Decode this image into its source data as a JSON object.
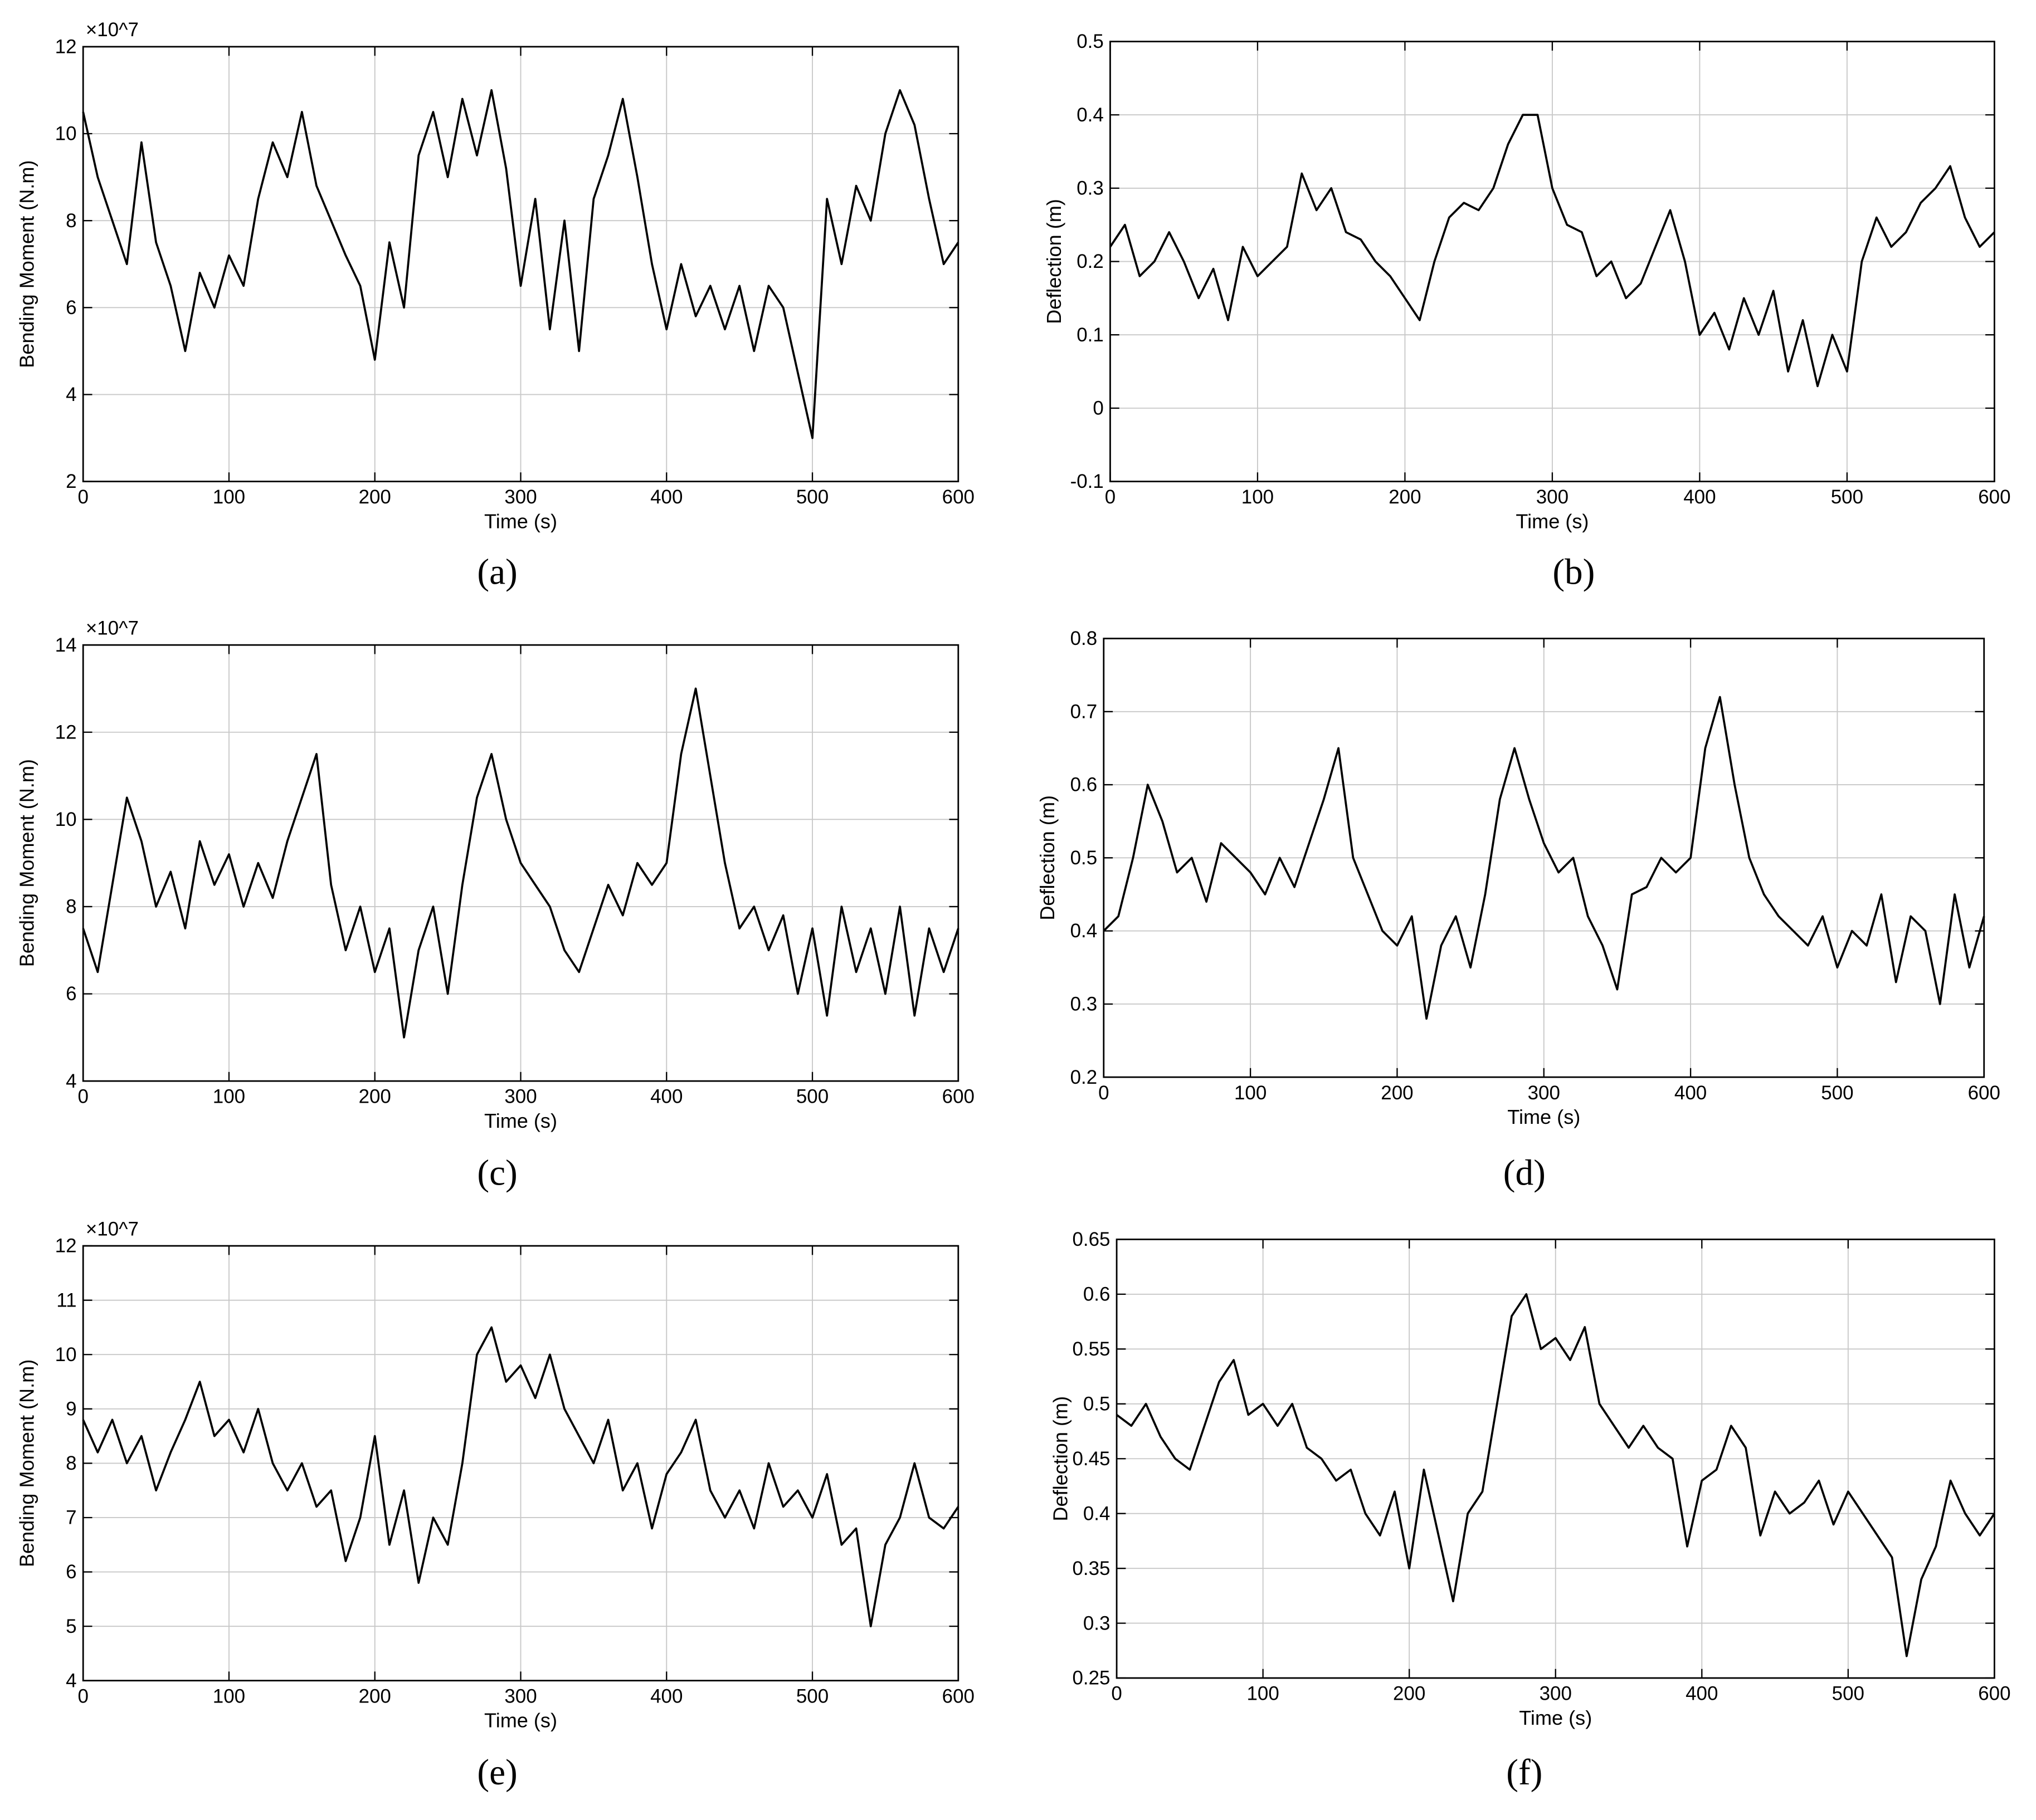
{
  "chart_data": [
    {
      "type": "line",
      "label": "(a)",
      "x_label": "Time (s)",
      "y_label": "Bending Moment (N.m)",
      "y_multiplier": "×10^7",
      "color": "#000000",
      "grid": true,
      "xlim": [
        0,
        600
      ],
      "xticks": [
        0,
        100,
        200,
        300,
        400,
        500,
        600
      ],
      "ylim": [
        2,
        12
      ],
      "yticks": [
        2,
        4,
        6,
        8,
        10,
        12
      ],
      "x": [
        0,
        10,
        20,
        30,
        40,
        50,
        60,
        70,
        80,
        90,
        100,
        110,
        120,
        130,
        140,
        150,
        160,
        170,
        180,
        190,
        200,
        210,
        220,
        230,
        240,
        250,
        260,
        270,
        280,
        290,
        300,
        310,
        320,
        330,
        340,
        350,
        360,
        370,
        380,
        390,
        400,
        410,
        420,
        430,
        440,
        450,
        460,
        470,
        480,
        490,
        500,
        510,
        520,
        530,
        540,
        550,
        560,
        570,
        580,
        590,
        600
      ],
      "values": [
        10.5,
        9.0,
        8.0,
        7.0,
        9.8,
        7.5,
        6.5,
        5.0,
        6.8,
        6.0,
        7.2,
        6.5,
        8.5,
        9.8,
        9.0,
        10.5,
        8.8,
        8.0,
        7.2,
        6.5,
        4.8,
        7.5,
        6.0,
        9.5,
        10.5,
        9.0,
        10.8,
        9.5,
        11.0,
        9.2,
        6.5,
        8.5,
        5.5,
        8.0,
        5.0,
        8.5,
        9.5,
        10.8,
        9.0,
        7.0,
        5.5,
        7.0,
        5.8,
        6.5,
        5.5,
        6.5,
        5.0,
        6.5,
        6.0,
        4.5,
        3.0,
        8.5,
        7.0,
        8.8,
        8.0,
        10.0,
        11.0,
        10.2,
        8.5,
        7.0,
        7.5
      ]
    },
    {
      "type": "line",
      "label": "(b)",
      "x_label": "Time (s)",
      "y_label": "Deflection (m)",
      "color": "#000000",
      "grid": true,
      "xlim": [
        0,
        600
      ],
      "xticks": [
        0,
        100,
        200,
        300,
        400,
        500,
        600
      ],
      "ylim": [
        -0.1,
        0.5
      ],
      "yticks": [
        -0.1,
        0,
        0.1,
        0.2,
        0.3,
        0.4,
        0.5
      ],
      "x": [
        0,
        10,
        20,
        30,
        40,
        50,
        60,
        70,
        80,
        90,
        100,
        110,
        120,
        130,
        140,
        150,
        160,
        170,
        180,
        190,
        200,
        210,
        220,
        230,
        240,
        250,
        260,
        270,
        280,
        290,
        300,
        310,
        320,
        330,
        340,
        350,
        360,
        370,
        380,
        390,
        400,
        410,
        420,
        430,
        440,
        450,
        460,
        470,
        480,
        490,
        500,
        510,
        520,
        530,
        540,
        550,
        560,
        570,
        580,
        590,
        600
      ],
      "values": [
        0.22,
        0.25,
        0.18,
        0.2,
        0.24,
        0.2,
        0.15,
        0.19,
        0.12,
        0.22,
        0.18,
        0.2,
        0.22,
        0.32,
        0.27,
        0.3,
        0.24,
        0.23,
        0.2,
        0.18,
        0.15,
        0.12,
        0.2,
        0.26,
        0.28,
        0.27,
        0.3,
        0.36,
        0.4,
        0.4,
        0.3,
        0.25,
        0.24,
        0.18,
        0.2,
        0.15,
        0.17,
        0.22,
        0.27,
        0.2,
        0.1,
        0.13,
        0.08,
        0.15,
        0.1,
        0.16,
        0.05,
        0.12,
        0.03,
        0.1,
        0.05,
        0.2,
        0.26,
        0.22,
        0.24,
        0.28,
        0.3,
        0.33,
        0.26,
        0.22,
        0.24
      ]
    },
    {
      "type": "line",
      "label": "(c)",
      "x_label": "Time (s)",
      "y_label": "Bending Moment (N.m)",
      "y_multiplier": "×10^7",
      "color": "#000000",
      "grid": true,
      "xlim": [
        0,
        600
      ],
      "xticks": [
        0,
        100,
        200,
        300,
        400,
        500,
        600
      ],
      "ylim": [
        4,
        14
      ],
      "yticks": [
        4,
        6,
        8,
        10,
        12,
        14
      ],
      "x": [
        0,
        10,
        20,
        30,
        40,
        50,
        60,
        70,
        80,
        90,
        100,
        110,
        120,
        130,
        140,
        150,
        160,
        170,
        180,
        190,
        200,
        210,
        220,
        230,
        240,
        250,
        260,
        270,
        280,
        290,
        300,
        310,
        320,
        330,
        340,
        350,
        360,
        370,
        380,
        390,
        400,
        410,
        420,
        430,
        440,
        450,
        460,
        470,
        480,
        490,
        500,
        510,
        520,
        530,
        540,
        550,
        560,
        570,
        580,
        590,
        600
      ],
      "values": [
        7.5,
        6.5,
        8.5,
        10.5,
        9.5,
        8.0,
        8.8,
        7.5,
        9.5,
        8.5,
        9.2,
        8.0,
        9.0,
        8.2,
        9.5,
        10.5,
        11.5,
        8.5,
        7.0,
        8.0,
        6.5,
        7.5,
        5.0,
        7.0,
        8.0,
        6.0,
        8.5,
        10.5,
        11.5,
        10.0,
        9.0,
        8.5,
        8.0,
        7.0,
        6.5,
        7.5,
        8.5,
        7.8,
        9.0,
        8.5,
        9.0,
        11.5,
        13.0,
        11.0,
        9.0,
        7.5,
        8.0,
        7.0,
        7.8,
        6.0,
        7.5,
        5.5,
        8.0,
        6.5,
        7.5,
        6.0,
        8.0,
        5.5,
        7.5,
        6.5,
        7.5
      ]
    },
    {
      "type": "line",
      "label": "(d)",
      "x_label": "Time (s)",
      "y_label": "Deflection (m)",
      "color": "#000000",
      "grid": true,
      "xlim": [
        0,
        600
      ],
      "xticks": [
        0,
        100,
        200,
        300,
        400,
        500,
        600
      ],
      "ylim": [
        0.2,
        0.8
      ],
      "yticks": [
        0.2,
        0.3,
        0.4,
        0.5,
        0.6,
        0.7,
        0.8
      ],
      "x": [
        0,
        10,
        20,
        30,
        40,
        50,
        60,
        70,
        80,
        90,
        100,
        110,
        120,
        130,
        140,
        150,
        160,
        170,
        180,
        190,
        200,
        210,
        220,
        230,
        240,
        250,
        260,
        270,
        280,
        290,
        300,
        310,
        320,
        330,
        340,
        350,
        360,
        370,
        380,
        390,
        400,
        410,
        420,
        430,
        440,
        450,
        460,
        470,
        480,
        490,
        500,
        510,
        520,
        530,
        540,
        550,
        560,
        570,
        580,
        590,
        600
      ],
      "values": [
        0.4,
        0.42,
        0.5,
        0.6,
        0.55,
        0.48,
        0.5,
        0.44,
        0.52,
        0.5,
        0.48,
        0.45,
        0.5,
        0.46,
        0.52,
        0.58,
        0.65,
        0.5,
        0.45,
        0.4,
        0.38,
        0.42,
        0.28,
        0.38,
        0.42,
        0.35,
        0.45,
        0.58,
        0.65,
        0.58,
        0.52,
        0.48,
        0.5,
        0.42,
        0.38,
        0.32,
        0.45,
        0.46,
        0.5,
        0.48,
        0.5,
        0.65,
        0.72,
        0.6,
        0.5,
        0.45,
        0.42,
        0.4,
        0.38,
        0.42,
        0.35,
        0.4,
        0.38,
        0.45,
        0.33,
        0.42,
        0.4,
        0.3,
        0.45,
        0.35,
        0.42
      ]
    },
    {
      "type": "line",
      "label": "(e)",
      "x_label": "Time (s)",
      "y_label": "Bending Moment (N.m)",
      "y_multiplier": "×10^7",
      "color": "#000000",
      "grid": true,
      "xlim": [
        0,
        600
      ],
      "xticks": [
        0,
        100,
        200,
        300,
        400,
        500,
        600
      ],
      "ylim": [
        4,
        12
      ],
      "yticks": [
        4,
        5,
        6,
        7,
        8,
        9,
        10,
        11,
        12
      ],
      "x": [
        0,
        10,
        20,
        30,
        40,
        50,
        60,
        70,
        80,
        90,
        100,
        110,
        120,
        130,
        140,
        150,
        160,
        170,
        180,
        190,
        200,
        210,
        220,
        230,
        240,
        250,
        260,
        270,
        280,
        290,
        300,
        310,
        320,
        330,
        340,
        350,
        360,
        370,
        380,
        390,
        400,
        410,
        420,
        430,
        440,
        450,
        460,
        470,
        480,
        490,
        500,
        510,
        520,
        530,
        540,
        550,
        560,
        570,
        580,
        590,
        600
      ],
      "values": [
        8.8,
        8.2,
        8.8,
        8.0,
        8.5,
        7.5,
        8.2,
        8.8,
        9.5,
        8.5,
        8.8,
        8.2,
        9.0,
        8.0,
        7.5,
        8.0,
        7.2,
        7.5,
        6.2,
        7.0,
        8.5,
        6.5,
        7.5,
        5.8,
        7.0,
        6.5,
        8.0,
        10.0,
        10.5,
        9.5,
        9.8,
        9.2,
        10.0,
        9.0,
        8.5,
        8.0,
        8.8,
        7.5,
        8.0,
        6.8,
        7.8,
        8.2,
        8.8,
        7.5,
        7.0,
        7.5,
        6.8,
        8.0,
        7.2,
        7.5,
        7.0,
        7.8,
        6.5,
        6.8,
        5.0,
        6.5,
        7.0,
        8.0,
        7.0,
        6.8,
        7.2
      ]
    },
    {
      "type": "line",
      "label": "(f)",
      "x_label": "Time (s)",
      "y_label": "Deflection (m)",
      "color": "#000000",
      "grid": true,
      "xlim": [
        0,
        600
      ],
      "xticks": [
        0,
        100,
        200,
        300,
        400,
        500,
        600
      ],
      "ylim": [
        0.25,
        0.65
      ],
      "yticks": [
        0.25,
        0.3,
        0.35,
        0.4,
        0.45,
        0.5,
        0.55,
        0.6,
        0.65
      ],
      "x": [
        0,
        10,
        20,
        30,
        40,
        50,
        60,
        70,
        80,
        90,
        100,
        110,
        120,
        130,
        140,
        150,
        160,
        170,
        180,
        190,
        200,
        210,
        220,
        230,
        240,
        250,
        260,
        270,
        280,
        290,
        300,
        310,
        320,
        330,
        340,
        350,
        360,
        370,
        380,
        390,
        400,
        410,
        420,
        430,
        440,
        450,
        460,
        470,
        480,
        490,
        500,
        510,
        520,
        530,
        540,
        550,
        560,
        570,
        580,
        590,
        600
      ],
      "values": [
        0.49,
        0.48,
        0.5,
        0.47,
        0.45,
        0.44,
        0.48,
        0.52,
        0.54,
        0.49,
        0.5,
        0.48,
        0.5,
        0.46,
        0.45,
        0.43,
        0.44,
        0.4,
        0.38,
        0.42,
        0.35,
        0.44,
        0.38,
        0.32,
        0.4,
        0.42,
        0.5,
        0.58,
        0.6,
        0.55,
        0.56,
        0.54,
        0.57,
        0.5,
        0.48,
        0.46,
        0.48,
        0.46,
        0.45,
        0.37,
        0.43,
        0.44,
        0.48,
        0.46,
        0.38,
        0.42,
        0.4,
        0.41,
        0.43,
        0.39,
        0.42,
        0.4,
        0.38,
        0.36,
        0.27,
        0.34,
        0.37,
        0.43,
        0.4,
        0.38,
        0.4
      ]
    }
  ]
}
